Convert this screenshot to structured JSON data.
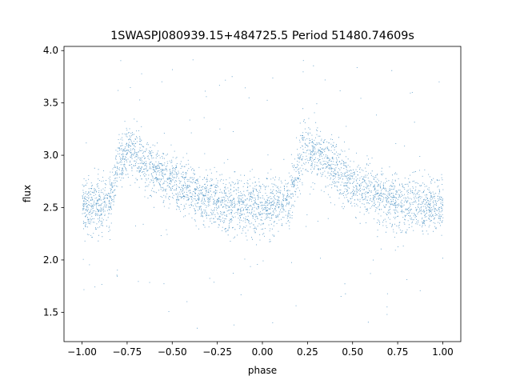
{
  "chart_data": {
    "type": "scatter",
    "title": "1SWASPJ080939.15+484725.5 Period 51480.74609s",
    "xlabel": "phase",
    "ylabel": "flux",
    "xlim": [
      -1.1,
      1.1
    ],
    "ylim": [
      1.22,
      4.04
    ],
    "x_ticks": [
      -1.0,
      -0.75,
      -0.5,
      -0.25,
      0.0,
      0.25,
      0.5,
      0.75,
      1.0
    ],
    "x_tick_labels": [
      "−1.00",
      "−0.75",
      "−0.50",
      "−0.25",
      "0.00",
      "0.25",
      "0.50",
      "0.75",
      "1.00"
    ],
    "y_ticks": [
      1.5,
      2.0,
      2.5,
      3.0,
      3.5,
      4.0
    ],
    "y_tick_labels": [
      "1.5",
      "2.0",
      "2.5",
      "3.0",
      "3.5",
      "4.0"
    ],
    "grid": false,
    "legend": "none",
    "marker_color": "#1f77b4",
    "series": [
      {
        "x": [
          -1.0,
          -0.95,
          -0.9,
          -0.85,
          -0.8,
          -0.75,
          -0.7,
          -0.65,
          -0.6,
          -0.55,
          -0.5,
          -0.45,
          -0.4,
          -0.35,
          -0.3,
          -0.25,
          -0.2,
          -0.15,
          -0.1,
          -0.05,
          0.0,
          0.05,
          0.1,
          0.15,
          0.2,
          0.25,
          0.3,
          0.35,
          0.4,
          0.45,
          0.5,
          0.55,
          0.6,
          0.65,
          0.7,
          0.75,
          0.8,
          0.85,
          0.9,
          0.95,
          1.0
        ],
        "y": [
          2.52,
          2.52,
          2.52,
          2.55,
          2.9,
          3.08,
          3.02,
          2.94,
          2.87,
          2.8,
          2.74,
          2.69,
          2.65,
          2.61,
          2.58,
          2.55,
          2.53,
          2.52,
          2.51,
          2.51,
          2.51,
          2.51,
          2.52,
          2.55,
          2.92,
          3.08,
          3.02,
          2.94,
          2.87,
          2.8,
          2.74,
          2.69,
          2.65,
          2.61,
          2.58,
          2.55,
          2.53,
          2.52,
          2.51,
          2.51,
          2.51
        ],
        "scatter_sd": 0.13
      }
    ]
  }
}
